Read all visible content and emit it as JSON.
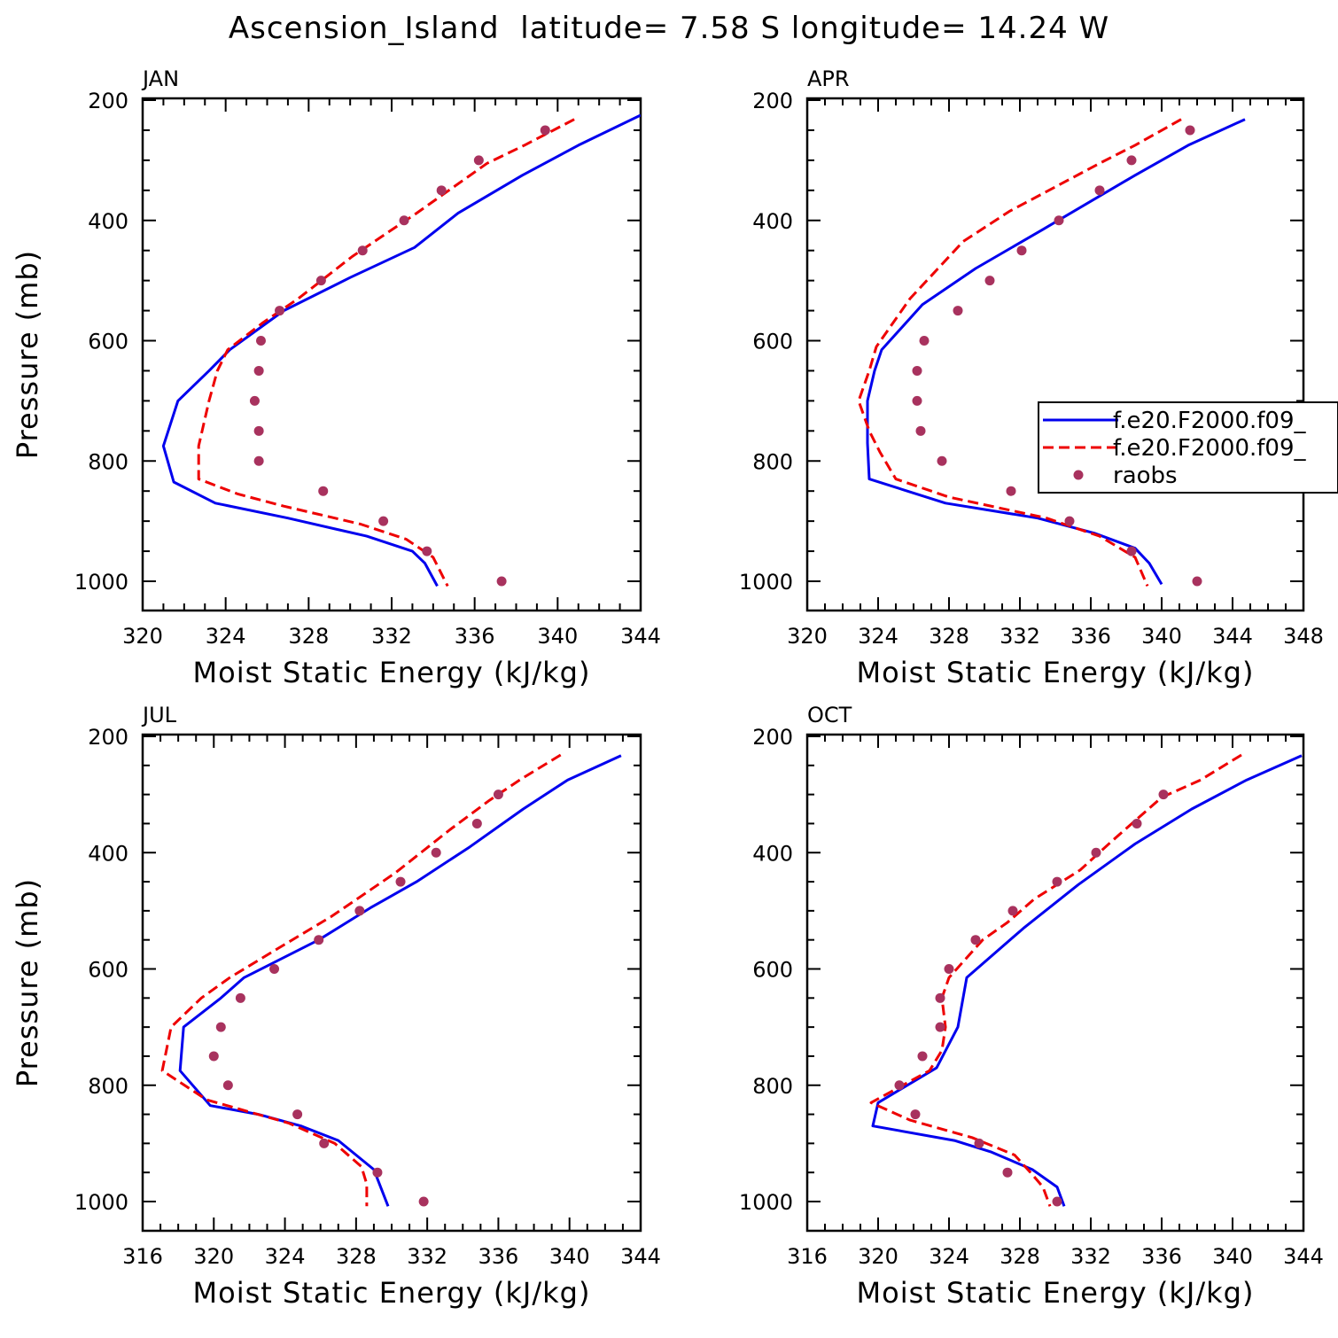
{
  "title": "Ascension_Island  latitude= 7.58 S longitude= 14.24 W",
  "colors": {
    "model1": "#0000ee",
    "model2": "#ee0000",
    "raobs": "#a8325e",
    "axis": "#000000"
  },
  "legend": {
    "panel": 1,
    "entries": [
      {
        "label": "f.e20.F2000.f09_",
        "style": "solid",
        "color": "#0000ee"
      },
      {
        "label": "f.e20.F2000.f09_",
        "style": "dashed",
        "color": "#ee0000"
      },
      {
        "label": "raobs",
        "style": "dot",
        "color": "#a8325e"
      }
    ]
  },
  "chart_data": [
    {
      "type": "line",
      "panel_label": "JAN",
      "xlabel": "Moist Static Energy (kJ/kg)",
      "ylabel": "Pressure (mb)",
      "xlim": [
        320,
        344
      ],
      "xticks": [
        320,
        324,
        328,
        332,
        336,
        340,
        344
      ],
      "ylim": [
        1000,
        200
      ],
      "yticks": [
        200,
        400,
        600,
        800,
        1000
      ],
      "series": [
        {
          "style": "solid",
          "points": [
            [
              344,
              225
            ],
            [
              341,
              275
            ],
            [
              338.3,
              325
            ],
            [
              335.2,
              388
            ],
            [
              333.1,
              445
            ],
            [
              330,
              495
            ],
            [
              326.8,
              550
            ],
            [
              324.2,
              615
            ],
            [
              323.2,
              650
            ],
            [
              321.7,
              700
            ],
            [
              321,
              775
            ],
            [
              321.5,
              835
            ],
            [
              323.5,
              870
            ],
            [
              327,
              895
            ],
            [
              330.8,
              925
            ],
            [
              333,
              950
            ],
            [
              333.6,
              970
            ],
            [
              334.2,
              1008
            ]
          ]
        },
        {
          "style": "dashed",
          "points": [
            [
              340.8,
              232
            ],
            [
              338.4,
              275
            ],
            [
              336.6,
              305
            ],
            [
              333.2,
              388
            ],
            [
              331.6,
              425
            ],
            [
              330.1,
              460
            ],
            [
              327.5,
              530
            ],
            [
              325.8,
              570
            ],
            [
              324.1,
              615
            ],
            [
              323.6,
              650
            ],
            [
              323.2,
              700
            ],
            [
              322.7,
              775
            ],
            [
              322.7,
              830
            ],
            [
              324.6,
              855
            ],
            [
              326.8,
              875
            ],
            [
              330.5,
              905
            ],
            [
              332.7,
              930
            ],
            [
              334,
              960
            ],
            [
              334.7,
              1008
            ]
          ]
        },
        {
          "style": "dot",
          "points": [
            [
              339.4,
              250
            ],
            [
              336.2,
              300
            ],
            [
              334.4,
              350
            ],
            [
              332.6,
              400
            ],
            [
              330.6,
              450
            ],
            [
              328.6,
              500
            ],
            [
              326.6,
              550
            ],
            [
              325.7,
              600
            ],
            [
              325.6,
              650
            ],
            [
              325.4,
              700
            ],
            [
              325.6,
              750
            ],
            [
              325.6,
              800
            ],
            [
              328.7,
              850
            ],
            [
              331.6,
              900
            ],
            [
              333.7,
              950
            ],
            [
              337.3,
              1000
            ]
          ]
        }
      ]
    },
    {
      "type": "line",
      "panel_label": "APR",
      "xlabel": "Moist Static Energy (kJ/kg)",
      "ylabel": "",
      "xlim": [
        320,
        348
      ],
      "xticks": [
        320,
        324,
        328,
        332,
        336,
        340,
        344,
        348
      ],
      "ylim": [
        1000,
        200
      ],
      "yticks": [
        200,
        400,
        600,
        800,
        1000
      ],
      "series": [
        {
          "style": "solid",
          "points": [
            [
              344.7,
              232
            ],
            [
              341.5,
              275
            ],
            [
              338.5,
              325
            ],
            [
              333.3,
              415
            ],
            [
              329.5,
              480
            ],
            [
              326.5,
              540
            ],
            [
              324.2,
              615
            ],
            [
              323.8,
              650
            ],
            [
              323.4,
              700
            ],
            [
              323.4,
              770
            ],
            [
              323.5,
              830
            ],
            [
              327.8,
              870
            ],
            [
              333,
              895
            ],
            [
              336.2,
              920
            ],
            [
              338.5,
              945
            ],
            [
              339.3,
              970
            ],
            [
              340,
              1005
            ]
          ]
        },
        {
          "style": "dashed",
          "points": [
            [
              341.1,
              232
            ],
            [
              338.5,
              275
            ],
            [
              336.5,
              305
            ],
            [
              331.4,
              385
            ],
            [
              328.8,
              435
            ],
            [
              325.8,
              530
            ],
            [
              323.9,
              610
            ],
            [
              323.5,
              650
            ],
            [
              322.9,
              700
            ],
            [
              323.5,
              750
            ],
            [
              324.1,
              785
            ],
            [
              325,
              830
            ],
            [
              328,
              860
            ],
            [
              333.5,
              895
            ],
            [
              336.5,
              925
            ],
            [
              338.5,
              960
            ],
            [
              339.2,
              1008
            ]
          ]
        },
        {
          "style": "dot",
          "points": [
            [
              341.6,
              250
            ],
            [
              338.3,
              300
            ],
            [
              336.5,
              350
            ],
            [
              334.2,
              400
            ],
            [
              332.1,
              450
            ],
            [
              330.3,
              500
            ],
            [
              328.5,
              550
            ],
            [
              326.6,
              600
            ],
            [
              326.2,
              650
            ],
            [
              326.2,
              700
            ],
            [
              326.4,
              750
            ],
            [
              327.6,
              800
            ],
            [
              331.5,
              850
            ],
            [
              334.8,
              900
            ],
            [
              338.3,
              950
            ],
            [
              342,
              1000
            ]
          ]
        }
      ]
    },
    {
      "type": "line",
      "panel_label": "JUL",
      "xlabel": "Moist Static Energy (kJ/kg)",
      "ylabel": "Pressure (mb)",
      "xlim": [
        316,
        344
      ],
      "xticks": [
        316,
        320,
        324,
        328,
        332,
        336,
        340,
        344
      ],
      "ylim": [
        1000,
        200
      ],
      "yticks": [
        200,
        400,
        600,
        800,
        1000
      ],
      "series": [
        {
          "style": "solid",
          "points": [
            [
              342.9,
              233
            ],
            [
              339.9,
              275
            ],
            [
              337.4,
              325
            ],
            [
              334.4,
              390
            ],
            [
              331.4,
              450
            ],
            [
              328.8,
              495
            ],
            [
              325.9,
              550
            ],
            [
              321.7,
              615
            ],
            [
              320.4,
              650
            ],
            [
              318.3,
              700
            ],
            [
              318.1,
              775
            ],
            [
              319.8,
              835
            ],
            [
              322.5,
              850
            ],
            [
              324.9,
              870
            ],
            [
              327,
              895
            ],
            [
              329,
              945
            ],
            [
              329.8,
              1008
            ]
          ]
        },
        {
          "style": "dashed",
          "points": [
            [
              339.5,
              232
            ],
            [
              337.2,
              275
            ],
            [
              335.5,
              310
            ],
            [
              333.3,
              360
            ],
            [
              330.2,
              435
            ],
            [
              326.6,
              510
            ],
            [
              323.6,
              565
            ],
            [
              320.9,
              615
            ],
            [
              319.3,
              650
            ],
            [
              317.6,
              700
            ],
            [
              317.1,
              775
            ],
            [
              319.6,
              825
            ],
            [
              324.2,
              865
            ],
            [
              326.8,
              900
            ],
            [
              328.3,
              940
            ],
            [
              328.6,
              970
            ],
            [
              328.6,
              1008
            ]
          ]
        },
        {
          "style": "dot",
          "points": [
            [
              336,
              300
            ],
            [
              334.8,
              350
            ],
            [
              332.5,
              400
            ],
            [
              330.5,
              450
            ],
            [
              328.2,
              500
            ],
            [
              325.9,
              550
            ],
            [
              323.4,
              600
            ],
            [
              321.5,
              650
            ],
            [
              320.4,
              700
            ],
            [
              320,
              750
            ],
            [
              320.8,
              800
            ],
            [
              324.7,
              850
            ],
            [
              326.2,
              900
            ],
            [
              329.2,
              950
            ],
            [
              331.8,
              1000
            ]
          ]
        }
      ]
    },
    {
      "type": "line",
      "panel_label": "OCT",
      "xlabel": "Moist Static Energy (kJ/kg)",
      "ylabel": "",
      "xlim": [
        316,
        344
      ],
      "xticks": [
        316,
        320,
        324,
        328,
        332,
        336,
        340,
        344
      ],
      "ylim": [
        1000,
        200
      ],
      "yticks": [
        200,
        400,
        600,
        800,
        1000
      ],
      "series": [
        {
          "style": "solid",
          "points": [
            [
              343.9,
              233
            ],
            [
              340.8,
              275
            ],
            [
              337.7,
              325
            ],
            [
              334.5,
              385
            ],
            [
              331.3,
              455
            ],
            [
              328.2,
              530
            ],
            [
              325,
              615
            ],
            [
              324.5,
              700
            ],
            [
              323.3,
              770
            ],
            [
              320,
              830
            ],
            [
              319.7,
              870
            ],
            [
              324.3,
              895
            ],
            [
              326.4,
              915
            ],
            [
              328.7,
              945
            ],
            [
              330.1,
              975
            ],
            [
              330.5,
              1008
            ]
          ]
        },
        {
          "style": "dashed",
          "points": [
            [
              340.5,
              232
            ],
            [
              338.2,
              275
            ],
            [
              336,
              305
            ],
            [
              333.2,
              380
            ],
            [
              331.4,
              430
            ],
            [
              328.8,
              480
            ],
            [
              327.3,
              520
            ],
            [
              325.9,
              550
            ],
            [
              324,
              615
            ],
            [
              323.6,
              650
            ],
            [
              323.8,
              700
            ],
            [
              323.6,
              740
            ],
            [
              322.9,
              775
            ],
            [
              319.6,
              830
            ],
            [
              321.8,
              860
            ],
            [
              325.3,
              890
            ],
            [
              327.7,
              920
            ],
            [
              328.6,
              950
            ],
            [
              329.3,
              975
            ],
            [
              329.7,
              1008
            ]
          ]
        },
        {
          "style": "dot",
          "points": [
            [
              336.1,
              300
            ],
            [
              334.6,
              350
            ],
            [
              332.3,
              400
            ],
            [
              330.1,
              450
            ],
            [
              327.6,
              500
            ],
            [
              325.5,
              550
            ],
            [
              324,
              600
            ],
            [
              323.5,
              650
            ],
            [
              323.5,
              700
            ],
            [
              322.5,
              750
            ],
            [
              321.2,
              800
            ],
            [
              322.1,
              850
            ],
            [
              325.7,
              900
            ],
            [
              327.3,
              950
            ],
            [
              330.1,
              1000
            ]
          ]
        }
      ]
    }
  ]
}
